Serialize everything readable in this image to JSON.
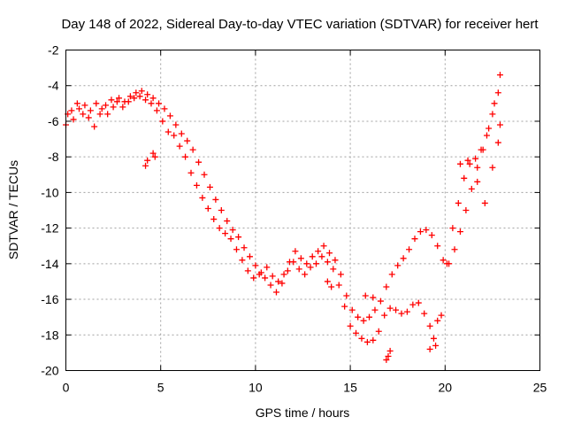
{
  "chart_data": {
    "type": "scatter",
    "title": "Day 148 of 2022, Sidereal Day-to-day VTEC variation (SDTVAR) for receiver hert",
    "xlabel": "GPS time / hours",
    "ylabel": "SDTVAR / TECUs",
    "xlim": [
      0,
      25
    ],
    "ylim": [
      -20,
      -2
    ],
    "xticks": [
      0,
      5,
      10,
      15,
      20,
      25
    ],
    "yticks": [
      -20,
      -18,
      -16,
      -14,
      -12,
      -10,
      -8,
      -6,
      -4,
      -2
    ],
    "grid": true,
    "marker": "plus",
    "color": "#ff0000",
    "series": [
      {
        "x": [
          0.0,
          0.3,
          0.6,
          0.9,
          1.2,
          1.5,
          1.8,
          2.1,
          2.4,
          2.7,
          3.0,
          3.3,
          3.6,
          3.9,
          4.2,
          4.5,
          4.8,
          5.1,
          5.4,
          5.7,
          6.0,
          6.3,
          6.6,
          6.9,
          7.2,
          7.5,
          7.8,
          8.1,
          8.4,
          8.7,
          9.0,
          9.3,
          9.6,
          9.9,
          10.2,
          10.5,
          10.8,
          11.1,
          11.4,
          11.7,
          12.0,
          12.3,
          12.6,
          12.9,
          13.2,
          13.5,
          13.8,
          14.1,
          14.4,
          14.7,
          15.0,
          15.3,
          15.6,
          15.9,
          16.2,
          16.5,
          16.8,
          17.1,
          17.4,
          17.7,
          18.0,
          18.3,
          18.6,
          18.9,
          19.2,
          19.5,
          19.8,
          20.1,
          20.4,
          20.7,
          21.0,
          21.3,
          21.6,
          21.9,
          22.2,
          22.5,
          22.8
        ],
        "y": [
          -6.2,
          -5.4,
          -5.0,
          -5.6,
          -5.8,
          -6.3,
          -5.6,
          -5.1,
          -4.8,
          -4.9,
          -5.2,
          -4.9,
          -4.7,
          -4.6,
          -4.8,
          -5.0,
          -5.4,
          -6.0,
          -6.6,
          -6.8,
          -7.4,
          -8.0,
          -8.9,
          -9.6,
          -10.3,
          -10.9,
          -11.5,
          -12.0,
          -12.3,
          -12.6,
          -13.2,
          -13.8,
          -14.4,
          -14.8,
          -14.6,
          -14.8,
          -15.2,
          -15.6,
          -15.1,
          -14.4,
          -13.9,
          -14.3,
          -14.6,
          -14.2,
          -14.0,
          -13.6,
          -13.9,
          -14.3,
          -15.2,
          -16.4,
          -17.5,
          -17.9,
          -18.2,
          -18.4,
          -18.3,
          -17.8,
          -16.9,
          -16.5,
          -16.6,
          -16.8,
          -16.7,
          -16.3,
          -16.2,
          -16.8,
          -17.5,
          -18.6,
          -16.9,
          -14.0,
          -12.0,
          -10.6,
          -9.2,
          -8.4,
          -8.1,
          -7.6,
          -6.8,
          -5.6,
          -4.4
        ]
      },
      {
        "x": [
          0.1,
          0.4,
          0.7,
          1.0,
          1.3,
          1.6,
          1.9,
          2.2,
          2.5,
          2.8,
          3.1,
          3.4,
          3.7,
          4.0,
          4.3,
          4.6,
          4.9,
          5.2,
          5.5,
          5.8,
          6.1,
          6.4,
          6.7,
          7.0,
          7.3,
          7.6,
          7.9,
          8.2,
          8.5,
          8.8,
          9.1,
          9.4,
          9.7,
          10.0,
          10.3,
          10.6,
          10.9,
          11.2,
          11.5,
          11.8,
          12.1,
          12.4,
          12.7,
          13.0,
          13.3,
          13.6,
          13.9,
          14.2,
          14.5,
          14.8,
          15.1,
          15.4,
          15.7,
          16.0,
          16.3,
          16.6,
          16.9,
          17.2,
          17.5,
          17.8,
          18.1,
          18.4,
          18.7,
          19.0,
          19.3,
          19.6,
          19.9,
          20.2,
          20.5,
          20.8,
          21.1,
          21.4,
          21.7,
          22.0,
          22.3,
          22.6,
          22.9
        ],
        "y": [
          -5.6,
          -5.9,
          -5.3,
          -5.1,
          -5.4,
          -5.0,
          -5.3,
          -5.6,
          -5.2,
          -4.7,
          -4.9,
          -4.6,
          -4.4,
          -4.3,
          -4.5,
          -4.7,
          -5.0,
          -5.3,
          -5.7,
          -6.2,
          -6.7,
          -7.1,
          -7.6,
          -8.3,
          -9.0,
          -9.7,
          -10.4,
          -11.0,
          -11.6,
          -12.1,
          -12.5,
          -13.1,
          -13.6,
          -14.1,
          -14.5,
          -14.2,
          -14.7,
          -15.0,
          -14.6,
          -13.9,
          -13.3,
          -13.7,
          -14.0,
          -13.6,
          -13.3,
          -13.0,
          -13.4,
          -13.8,
          -14.6,
          -15.8,
          -16.6,
          -17.0,
          -17.2,
          -17.0,
          -16.6,
          -16.1,
          -15.3,
          -14.6,
          -14.1,
          -13.7,
          -13.2,
          -12.6,
          -12.2,
          -12.1,
          -12.4,
          -13.0,
          -13.8,
          -14.0,
          -13.2,
          -12.2,
          -11.0,
          -9.8,
          -8.6,
          -7.6,
          -6.4,
          -5.0,
          -3.4
        ]
      },
      {
        "x": [
          4.2,
          4.3,
          4.6,
          4.7,
          13.8,
          14.0,
          15.8,
          16.2,
          16.9,
          17.0,
          17.1,
          19.2,
          19.4,
          19.6,
          20.8,
          21.2,
          21.7,
          22.1,
          22.5,
          22.8,
          22.9
        ],
        "y": [
          -8.5,
          -8.2,
          -7.8,
          -8.0,
          -15.0,
          -15.3,
          -15.8,
          -15.9,
          -19.4,
          -19.2,
          -18.9,
          -18.8,
          -18.2,
          -17.2,
          -8.4,
          -8.2,
          -9.4,
          -10.6,
          -8.6,
          -7.2,
          -6.2
        ]
      }
    ]
  }
}
